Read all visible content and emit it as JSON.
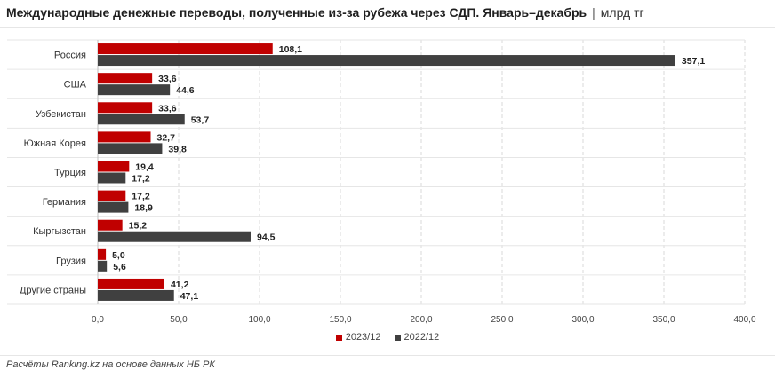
{
  "header": {
    "title": "Международные денежные переводы, полученные из-за рубежа через СДП. Январь–декабрь",
    "separator": "|",
    "unit": "млрд тг"
  },
  "chart_data": {
    "type": "bar",
    "orientation": "horizontal",
    "categories": [
      "Россия",
      "США",
      "Узбекистан",
      "Южная Корея",
      "Турция",
      "Германия",
      "Кыргызстан",
      "Грузия",
      "Другие страны"
    ],
    "series": [
      {
        "name": "2023/12",
        "color": "#c00000",
        "values": [
          108.1,
          33.6,
          33.6,
          32.7,
          19.4,
          17.2,
          15.2,
          5.0,
          41.2
        ]
      },
      {
        "name": "2022/12",
        "color": "#404040",
        "values": [
          357.1,
          44.6,
          53.7,
          39.8,
          17.2,
          18.9,
          94.5,
          5.6,
          47.1
        ]
      }
    ],
    "xlim": [
      0,
      400
    ],
    "xticks": [
      "0,0",
      "50,0",
      "100,0",
      "150,0",
      "200,0",
      "250,0",
      "300,0",
      "350,0",
      "400,0"
    ],
    "legend_position": "bottom",
    "grid": "vertical dashed"
  },
  "footer": {
    "source": "Расчёты Ranking.kz на основе данных НБ РК"
  }
}
